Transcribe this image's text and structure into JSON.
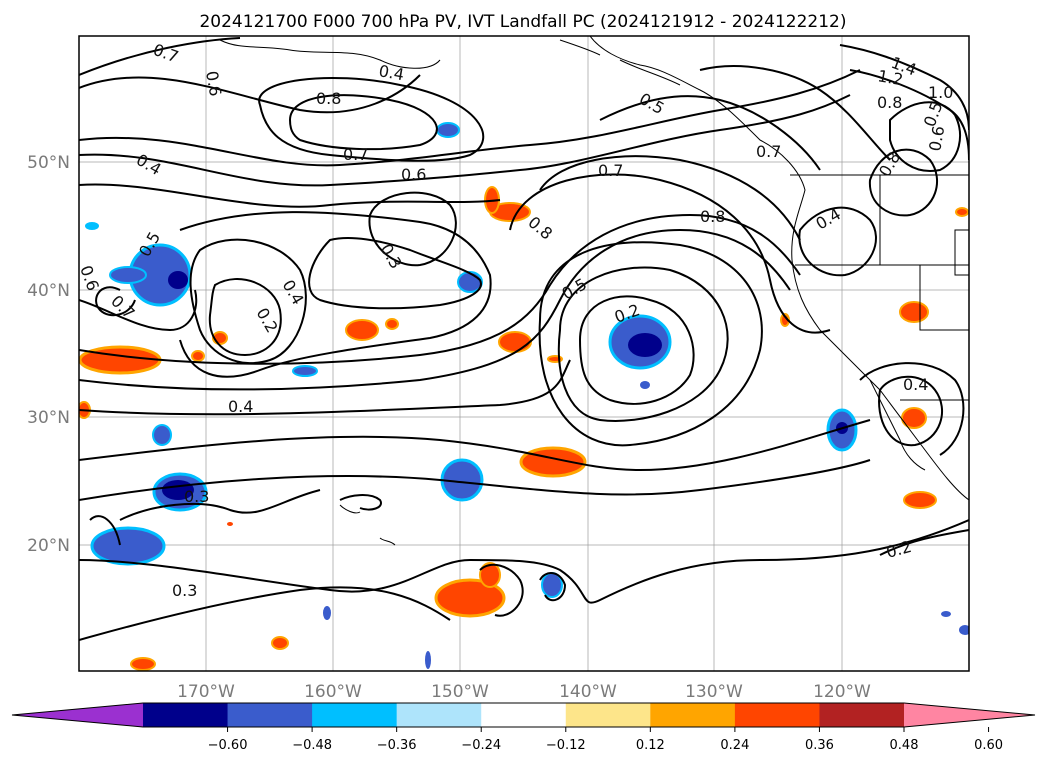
{
  "title": "2024121700 F000 700 hPa PV, IVT Landfall PC (2024121912 - 2024122212)",
  "lon_ticks": [
    "170°W",
    "160°W",
    "150°W",
    "140°W",
    "130°W",
    "120°W"
  ],
  "lat_ticks": [
    "50°N",
    "40°N",
    "30°N",
    "20°N"
  ],
  "colorbar": {
    "tick_labels": [
      "−0.60",
      "−0.48",
      "−0.36",
      "−0.24",
      "−0.12",
      "0.12",
      "0.24",
      "0.36",
      "0.48",
      "0.60"
    ],
    "colors": [
      "#9b30d0",
      "#00008b",
      "#3a5ccc",
      "#00bfff",
      "#aee4fb",
      "#ffffff",
      "#fde58a",
      "#ffa500",
      "#ff4500",
      "#b22222",
      "#ff85a2"
    ]
  },
  "contour_labels": [
    "0.7",
    "0.6",
    "0.8",
    "0.7",
    "0.6",
    "0.4",
    "0.5",
    "0.6",
    "0.7",
    "0.3",
    "0.4",
    "0.2",
    "0.4",
    "0.8",
    "0.7",
    "0.5",
    "0.2",
    "0.8",
    "0.7",
    "0.4",
    "0.5",
    "1.4",
    "1.2",
    "0.8",
    "1.0",
    "0.5",
    "0.6",
    "0.8",
    "0.4",
    "0.3",
    "0.3",
    "0.2",
    "0.4"
  ]
}
